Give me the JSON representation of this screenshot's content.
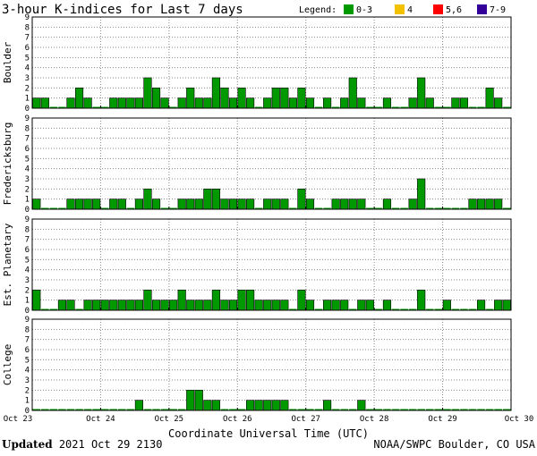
{
  "chart_data": {
    "type": "bar",
    "title": "3-hour K-indices for Last 7 days",
    "legend": {
      "label": "Legend:",
      "placement": "top-right",
      "entries": [
        {
          "label": "0-3",
          "color": "#009900"
        },
        {
          "label": "4",
          "color": "#f2c200"
        },
        {
          "label": "5,6",
          "color": "#ff0000"
        },
        {
          "label": "7-9",
          "color": "#330099"
        }
      ]
    },
    "xlabel": "Coordinate Universal Time (UTC)",
    "x_ticks": [
      "Oct 23",
      "Oct 24",
      "Oct 25",
      "Oct 26",
      "Oct 27",
      "Oct 28",
      "Oct 29",
      "Oct 30"
    ],
    "ylim": [
      0,
      9
    ],
    "y_ticks": [
      0,
      1,
      2,
      3,
      4,
      5,
      6,
      7,
      8,
      9
    ],
    "grid": true,
    "bar_color": "#009900",
    "panels": [
      {
        "name": "Boulder",
        "values": [
          1,
          1,
          0,
          0,
          1,
          2,
          1,
          0,
          0,
          1,
          1,
          1,
          1,
          3,
          2,
          1,
          0,
          1,
          2,
          1,
          1,
          3,
          2,
          1,
          2,
          1,
          0,
          1,
          2,
          2,
          1,
          2,
          1,
          0,
          1,
          0,
          1,
          3,
          1,
          0,
          0,
          1,
          0,
          0,
          1,
          3,
          1,
          0,
          0,
          1,
          1,
          0,
          0,
          2,
          1,
          0
        ]
      },
      {
        "name": "Fredericksburg",
        "values": [
          1,
          0,
          0,
          0,
          1,
          1,
          1,
          1,
          0,
          1,
          1,
          0,
          1,
          2,
          1,
          0,
          0,
          1,
          1,
          1,
          2,
          2,
          1,
          1,
          1,
          1,
          0,
          1,
          1,
          1,
          0,
          2,
          1,
          0,
          0,
          1,
          1,
          1,
          1,
          0,
          0,
          1,
          0,
          0,
          1,
          3,
          0,
          0,
          0,
          0,
          0,
          1,
          1,
          1,
          1,
          0
        ]
      },
      {
        "name": "Est. Planetary",
        "values": [
          2,
          0,
          0,
          1,
          1,
          0,
          1,
          1,
          1,
          1,
          1,
          1,
          1,
          2,
          1,
          1,
          1,
          2,
          1,
          1,
          1,
          2,
          1,
          1,
          2,
          2,
          1,
          1,
          1,
          1,
          0,
          2,
          1,
          0,
          1,
          1,
          1,
          0,
          1,
          1,
          0,
          1,
          0,
          0,
          0,
          2,
          0,
          0,
          1,
          0,
          0,
          0,
          1,
          0,
          1,
          1
        ]
      },
      {
        "name": "College",
        "values": [
          0,
          0,
          0,
          0,
          0,
          0,
          0,
          0,
          0,
          0,
          0,
          0,
          1,
          0,
          0,
          0,
          0,
          0,
          2,
          2,
          1,
          1,
          0,
          0,
          0,
          1,
          1,
          1,
          1,
          1,
          0,
          0,
          0,
          0,
          1,
          0,
          0,
          0,
          1,
          0,
          0,
          0,
          0,
          0,
          0,
          0,
          0,
          0,
          0,
          0,
          0,
          0,
          0,
          0,
          0,
          0
        ]
      }
    ]
  },
  "footer": {
    "updated_label": "Updated",
    "updated_value": "2021 Oct 29 2130",
    "source": "NOAA/SWPC Boulder, CO USA"
  }
}
